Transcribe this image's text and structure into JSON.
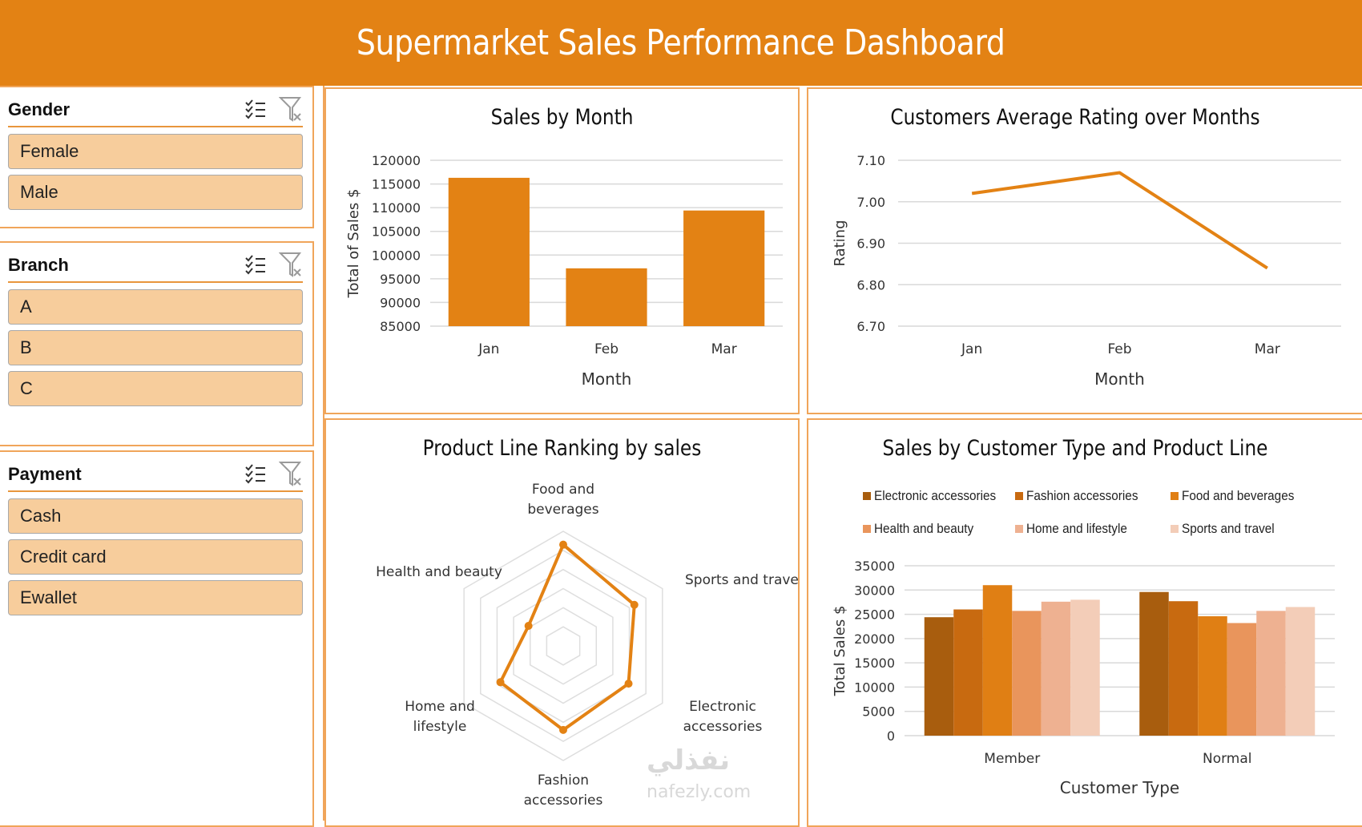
{
  "header": {
    "title": "Supermarket Sales Performance Dashboard"
  },
  "slicers": [
    {
      "title": "Gender",
      "items": [
        "Female",
        "Male"
      ]
    },
    {
      "title": "Branch",
      "items": [
        "A",
        "B",
        "C"
      ]
    },
    {
      "title": "Payment",
      "items": [
        "Cash",
        "Credit card",
        "Ewallet"
      ]
    }
  ],
  "slicer_icons": {
    "multi_select": "multi-select-icon",
    "clear_filter": "clear-filter-icon"
  },
  "colors": {
    "accent": "#e38214",
    "slicer_item": "#f7cd9c",
    "series": [
      "#a85d0e",
      "#c86a10",
      "#e07f14",
      "#e9955c",
      "#eeb191",
      "#f3cdb8"
    ]
  },
  "watermark": {
    "arabic": "نفذلي",
    "latin": "nafezly.com"
  },
  "chart_data": [
    {
      "id": "sales_by_month",
      "type": "bar",
      "title": "Sales by Month",
      "xlabel": "Month",
      "ylabel": "Total of Sales $",
      "categories": [
        "Jan",
        "Feb",
        "Mar"
      ],
      "values": [
        116300,
        97200,
        109400
      ],
      "ylim": [
        85000,
        120000
      ],
      "yticks": [
        85000,
        90000,
        95000,
        100000,
        105000,
        110000,
        115000,
        120000
      ],
      "grid": true
    },
    {
      "id": "rating_over_months",
      "type": "line",
      "title": "Customers Average Rating over Months",
      "xlabel": "Month",
      "ylabel": "Rating",
      "categories": [
        "Jan",
        "Feb",
        "Mar"
      ],
      "values": [
        7.02,
        7.07,
        6.84
      ],
      "ylim": [
        6.7,
        7.1
      ],
      "yticks": [
        "6.70",
        "6.80",
        "6.90",
        "7.00",
        "7.10"
      ],
      "grid": true
    },
    {
      "id": "product_line_ranking",
      "type": "radar",
      "title": "Product Line Ranking by sales",
      "categories": [
        "Food and beverages",
        "Sports and travel",
        "Electronic accessories",
        "Fashion accessories",
        "Home and lifestyle",
        "Health and beauty"
      ],
      "values": [
        5.3,
        4.3,
        3.95,
        4.4,
        3.8,
        2.1
      ],
      "rmax": 6,
      "rings": 6
    },
    {
      "id": "sales_by_customer_type",
      "type": "bar",
      "title": "Sales by Customer Type and Product Line",
      "xlabel": "Customer Type",
      "ylabel": "Total Sales $",
      "categories": [
        "Member",
        "Normal"
      ],
      "series": [
        {
          "name": "Electronic accessories",
          "values": [
            24400,
            29600
          ]
        },
        {
          "name": "Fashion accessories",
          "values": [
            26000,
            27700
          ]
        },
        {
          "name": "Food and beverages",
          "values": [
            31000,
            24600
          ]
        },
        {
          "name": "Health and beauty",
          "values": [
            25700,
            23200
          ]
        },
        {
          "name": "Home and lifestyle",
          "values": [
            27600,
            25700
          ]
        },
        {
          "name": "Sports and travel",
          "values": [
            28000,
            26500
          ]
        }
      ],
      "ylim": [
        0,
        35000
      ],
      "yticks": [
        0,
        5000,
        10000,
        15000,
        20000,
        25000,
        30000,
        35000
      ],
      "legend": "top",
      "grid": true
    }
  ]
}
